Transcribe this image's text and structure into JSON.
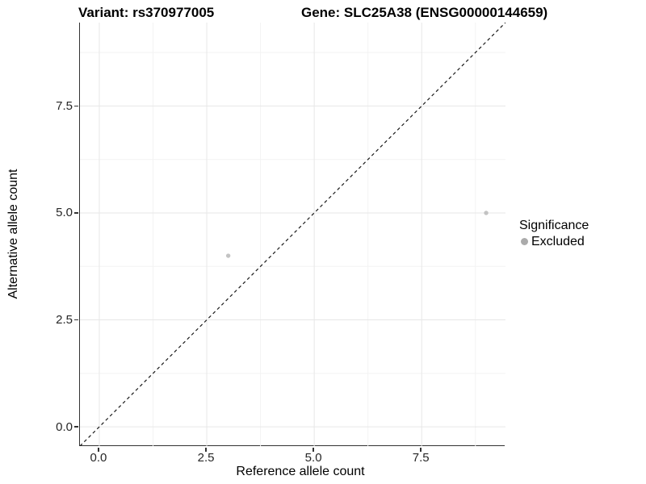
{
  "header": {
    "title_left": "Variant: rs370977005",
    "title_right": "Gene: SLC25A38 (ENSG00000144659)"
  },
  "axes": {
    "x_title": "Reference allele count",
    "y_title": "Alternative allele count"
  },
  "legend": {
    "title": "Significance",
    "items": [
      {
        "label": "Excluded",
        "color": "#ababab"
      }
    ]
  },
  "chart_data": {
    "type": "scatter",
    "title": "Variant: rs370977005 | Gene: SLC25A38 (ENSG00000144659)",
    "xlabel": "Reference allele count",
    "ylabel": "Alternative allele count",
    "xlim": [
      -0.45,
      9.45
    ],
    "ylim": [
      -0.45,
      9.45
    ],
    "x_major_ticks": [
      0.0,
      2.5,
      5.0,
      7.5
    ],
    "y_major_ticks": [
      0.0,
      2.5,
      5.0,
      7.5
    ],
    "x_tick_labels": [
      "0.0",
      "2.5",
      "5.0",
      "7.5"
    ],
    "y_tick_labels": [
      "0.0",
      "2.5",
      "5.0",
      "7.5"
    ],
    "x_minor_ticks": [
      1.25,
      3.75,
      6.25,
      8.75
    ],
    "y_minor_ticks": [
      1.25,
      3.75,
      6.25,
      8.75
    ],
    "grid": true,
    "grid_major_color": "#e7e7e7",
    "grid_minor_color": "#f3f3f3",
    "legend_position": "right",
    "series": [
      {
        "name": "Excluded",
        "color": "#c3c3c3",
        "points": [
          {
            "x": 3,
            "y": 4
          },
          {
            "x": 9,
            "y": 5
          }
        ]
      }
    ],
    "reference_line": {
      "type": "identity",
      "equation": "y = x",
      "style": "dashed",
      "color": "#1a1a1a"
    }
  }
}
